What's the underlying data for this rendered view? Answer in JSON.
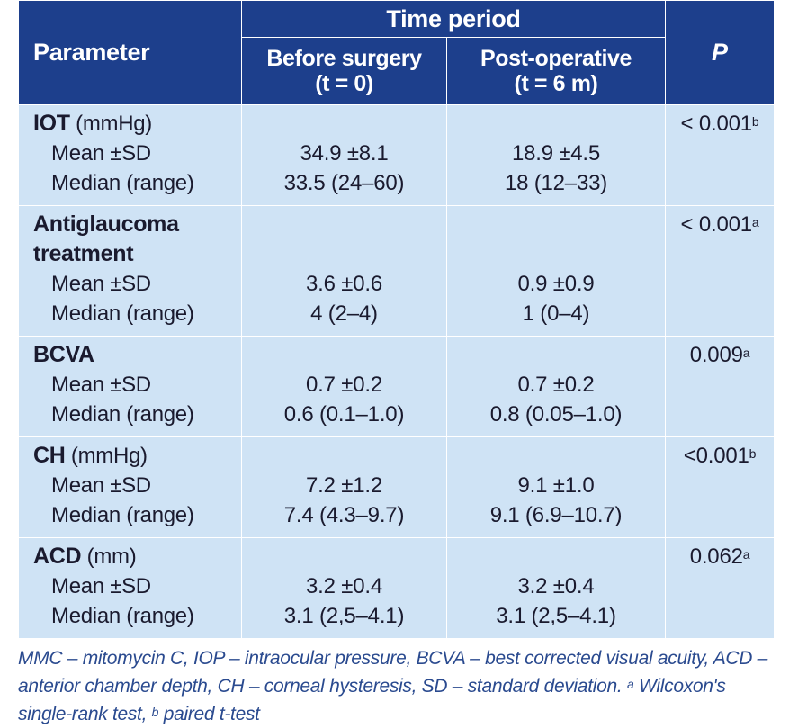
{
  "header": {
    "parameter": "Parameter",
    "time_period": "Time period",
    "before_line1": "Before surgery",
    "before_line2": "(t = 0)",
    "post_line1": "Post-operative",
    "post_line2": "(t = 6 m)",
    "p": "P"
  },
  "labels": {
    "mean": "Mean ±SD",
    "median": "Median (range)"
  },
  "rows": [
    {
      "name1": "IOT",
      "unit": " (mmHg)",
      "before_mean": "34.9 ±8.1",
      "before_median": "33.5 (24–60)",
      "post_mean": "18.9 ±4.5",
      "post_median": "18 (12–33)",
      "p": "< 0.001",
      "sup": "b"
    },
    {
      "name1": "Antiglaucoma",
      "name2": "treatment",
      "before_mean": "3.6 ±0.6",
      "before_median": "4 (2–4)",
      "post_mean": "0.9 ±0.9",
      "post_median": "1 (0–4)",
      "p": "< 0.001",
      "sup": "a"
    },
    {
      "name1": "BCVA",
      "before_mean": "0.7 ±0.2",
      "before_median": "0.6 (0.1–1.0)",
      "post_mean": "0.7 ±0.2",
      "post_median": "0.8 (0.05–1.0)",
      "p": "0.009",
      "sup": "a"
    },
    {
      "name1": "CH",
      "unit": " (mmHg)",
      "before_mean": "7.2 ±1.2",
      "before_median": "7.4 (4.3–9.7)",
      "post_mean": "9.1 ±1.0",
      "post_median": "9.1 (6.9–10.7)",
      "p": "<0.001",
      "sup": "b"
    },
    {
      "name1": "ACD",
      "unit": " (mm)",
      "before_mean": "3.2 ±0.4",
      "before_median": "3.1 (2,5–4.1)",
      "post_mean": "3.2 ±0.4",
      "post_median": "3.1 (2,5–4.1)",
      "p": "0.062",
      "sup": "a"
    }
  ],
  "footnote": {
    "text": "MMC – mitomycin C, IOP – intraocular pressure, BCVA – best corrected visual acuity, ACD – anterior chamber depth, CH – corneal hysteresis, SD – standard deviation.",
    "sup_a": "a",
    "text_a": " Wilcoxon's single-rank test, ",
    "sup_b": "b",
    "text_b": " paired t-test"
  }
}
